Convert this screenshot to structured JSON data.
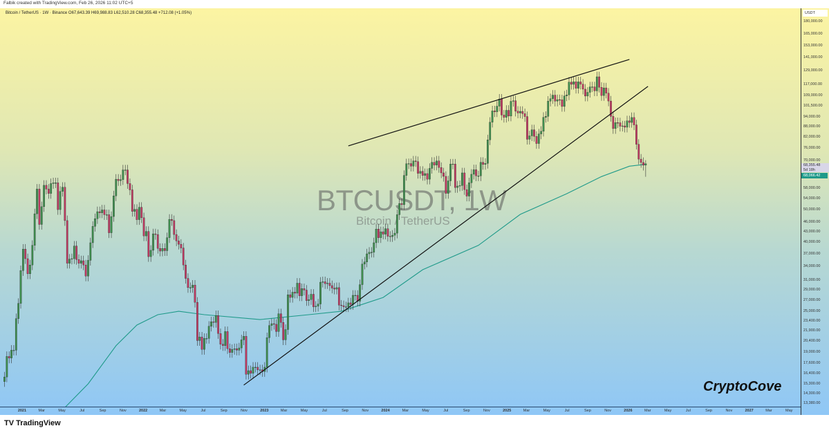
{
  "credit": "Falbik created with TradingView.com, Feb 26, 2026 11:02 UTC+5",
  "legend": "Bitcoin / TetherUS · 1W · Binance  O67,643.39  H69,988.83  L62,510.28  C68,355.48  +712.08 (+1.05%)",
  "watermark": {
    "symbol": "BTCUSDT, 1W",
    "name": "Bitcoin / TetherUS"
  },
  "signature": "CryptoCove",
  "footer": {
    "logo_icon": "tradingview-logo-icon",
    "brand": "TradingView"
  },
  "colors": {
    "up": "#3f8f4f",
    "down": "#c03a62",
    "ma": "#1f9a8a",
    "trendline": "#111111"
  },
  "chart_data": {
    "type": "candlestick",
    "scale": "log",
    "currency": "USDT",
    "ylim": [
      13380,
      180000
    ],
    "price_ticks": [
      "180,000.00",
      "165,000.00",
      "153,000.00",
      "141,000.00",
      "129,000.00",
      "117,000.00",
      "109,000.00",
      "101,500.00",
      "94,000.00",
      "88,000.00",
      "82,000.00",
      "76,000.00",
      "70,000.00",
      "58,000.00",
      "54,000.00",
      "50,000.00",
      "46,000.00",
      "43,000.00",
      "40,000.00",
      "37,000.00",
      "34,000.00",
      "31,000.00",
      "29,000.00",
      "27,000.00",
      "25,000.00",
      "23,400.00",
      "21,900.00",
      "20,400.00",
      "19,000.00",
      "17,600.00",
      "16,400.00",
      "15,300.00",
      "14,300.00",
      "13,380.00"
    ],
    "last_price": "68,355.48",
    "countdown": "5d 18h",
    "ma_value": "68,066.42",
    "time_ticks": [
      [
        "2021-01-01",
        "2021"
      ],
      [
        "2021-03-01",
        "Mar"
      ],
      [
        "2021-05-01",
        "May"
      ],
      [
        "2021-07-01",
        "Jul"
      ],
      [
        "2021-09-01",
        "Sep"
      ],
      [
        "2021-11-01",
        "Nov"
      ],
      [
        "2022-01-01",
        "2022"
      ],
      [
        "2022-03-01",
        "Mar"
      ],
      [
        "2022-05-01",
        "May"
      ],
      [
        "2022-07-01",
        "Jul"
      ],
      [
        "2022-09-01",
        "Sep"
      ],
      [
        "2022-11-01",
        "Nov"
      ],
      [
        "2023-01-01",
        "2023"
      ],
      [
        "2023-03-01",
        "Mar"
      ],
      [
        "2023-05-01",
        "May"
      ],
      [
        "2023-07-01",
        "Jul"
      ],
      [
        "2023-09-01",
        "Sep"
      ],
      [
        "2023-11-01",
        "Nov"
      ],
      [
        "2024-01-01",
        "2024"
      ],
      [
        "2024-03-01",
        "Mar"
      ],
      [
        "2024-05-01",
        "May"
      ],
      [
        "2024-07-01",
        "Jul"
      ],
      [
        "2024-09-01",
        "Sep"
      ],
      [
        "2024-11-01",
        "Nov"
      ],
      [
        "2025-01-01",
        "2025"
      ],
      [
        "2025-03-01",
        "Mar"
      ],
      [
        "2025-05-01",
        "May"
      ],
      [
        "2025-07-01",
        "Jul"
      ],
      [
        "2025-09-01",
        "Sep"
      ],
      [
        "2025-11-01",
        "Nov"
      ],
      [
        "2026-01-01",
        "2026"
      ],
      [
        "2026-03-01",
        "Mar"
      ],
      [
        "2026-05-01",
        "May"
      ],
      [
        "2026-07-01",
        "Jul"
      ],
      [
        "2026-09-01",
        "Sep"
      ],
      [
        "2026-11-01",
        "Nov"
      ],
      [
        "2027-01-01",
        "2027"
      ],
      [
        "2027-03-01",
        "Mar"
      ],
      [
        "2027-05-01",
        "May"
      ]
    ],
    "first_week": "2020-11-09",
    "first_open": 15500,
    "weekly_close": [
      16000,
      18400,
      18200,
      19200,
      19200,
      23800,
      26400,
      33000,
      38200,
      35800,
      32300,
      34300,
      39200,
      48600,
      57500,
      45200,
      51000,
      59000,
      57500,
      55800,
      59700,
      60000,
      60000,
      50000,
      56600,
      58200,
      46400,
      34700,
      35700,
      35800,
      39000,
      35600,
      34700,
      35300,
      34300,
      31800,
      35400,
      39900,
      44600,
      47000,
      49300,
      48900,
      49900,
      48300,
      48300,
      42700,
      47700,
      54900,
      61500,
      60900,
      61300,
      65500,
      65500,
      59700,
      57200,
      49400,
      50100,
      46700,
      50800,
      47300,
      41800,
      43100,
      36300,
      37900,
      42400,
      42200,
      38400,
      37700,
      38400,
      37800,
      41300,
      46800,
      46400,
      42200,
      40400,
      39500,
      38500,
      34300,
      31300,
      29400,
      29400,
      29900,
      26600,
      20500,
      21000,
      19300,
      20800,
      20800,
      22600,
      23300,
      23200,
      24300,
      21500,
      20000,
      19800,
      21800,
      19400,
      18900,
      19300,
      19400,
      19200,
      19500,
      20600,
      21100,
      16300,
      16700,
      16400,
      17100,
      17100,
      16800,
      16800,
      16600,
      17100,
      20900,
      22700,
      23000,
      22900,
      21800,
      24600,
      23200,
      20600,
      22100,
      28000,
      27500,
      28500,
      28300,
      30300,
      27800,
      29200,
      28900,
      26900,
      27100,
      28100,
      25800,
      25900,
      26300,
      30500,
      30600,
      30200,
      30300,
      29800,
      29300,
      29100,
      29400,
      26100,
      26000,
      25800,
      25800,
      26500,
      26200,
      27900,
      27900,
      26800,
      30000,
      34500,
      35000,
      37000,
      37400,
      37400,
      39900,
      43800,
      41300,
      43000,
      42300,
      43900,
      41700,
      41600,
      42000,
      42600,
      48300,
      52100,
      51700,
      63100,
      68300,
      68400,
      67200,
      69600,
      69300,
      64000,
      64900,
      63100,
      63900,
      61500,
      66200,
      69000,
      67700,
      69600,
      66600,
      64200,
      62700,
      55800,
      60800,
      68200,
      68200,
      58100,
      58700,
      58900,
      64200,
      57300,
      54800,
      60000,
      63600,
      65600,
      62900,
      62900,
      69000,
      68000,
      68500,
      80400,
      90600,
      97900,
      97300,
      101100,
      106100,
      95200,
      93700,
      98300,
      94500,
      104500,
      104900,
      97700,
      96500,
      97600,
      96100,
      94200,
      80700,
      82600,
      86100,
      82300,
      78400,
      83700,
      85200,
      93700,
      94300,
      104600,
      106400,
      109000,
      104600,
      105700,
      105600,
      100900,
      108400,
      109200,
      119100,
      117300,
      119400,
      114200,
      119300,
      117400,
      113500,
      108300,
      111100,
      115300,
      115300,
      112200,
      123500,
      115000,
      108700,
      114500,
      110500,
      104700,
      94300,
      86800,
      90400,
      90300,
      88200,
      88400,
      87600,
      91500,
      90500,
      93600,
      89000,
      78000,
      70500,
      68900,
      67643,
      68355.48
    ],
    "last_candle": {
      "open": 67643.39,
      "high": 69988.83,
      "low": 62510.28,
      "close": 68355.48
    },
    "moving_average": [
      [
        "2021-05-10",
        13000
      ],
      [
        "2021-07-19",
        15270
      ],
      [
        "2021-10-11",
        19790
      ],
      [
        "2021-12-13",
        22780
      ],
      [
        "2022-02-14",
        24450
      ],
      [
        "2022-04-18",
        25020
      ],
      [
        "2022-07-04",
        24450
      ],
      [
        "2022-12-19",
        23650
      ],
      [
        "2023-05-15",
        24450
      ],
      [
        "2023-08-21",
        25020
      ],
      [
        "2023-12-25",
        27500
      ],
      [
        "2024-04-22",
        33200
      ],
      [
        "2024-10-07",
        39200
      ],
      [
        "2025-02-10",
        48400
      ],
      [
        "2025-06-30",
        55700
      ],
      [
        "2025-10-13",
        62600
      ],
      [
        "2026-01-05",
        67200
      ],
      [
        "2026-02-23",
        68066.42
      ]
    ],
    "trendlines": [
      {
        "from": [
          "2023-09-11",
          77150
        ],
        "to": [
          "2026-01-05",
          139000
        ]
      },
      {
        "from": [
          "2022-10-31",
          15140
        ],
        "to": [
          "2026-03-02",
          115700
        ]
      }
    ]
  }
}
